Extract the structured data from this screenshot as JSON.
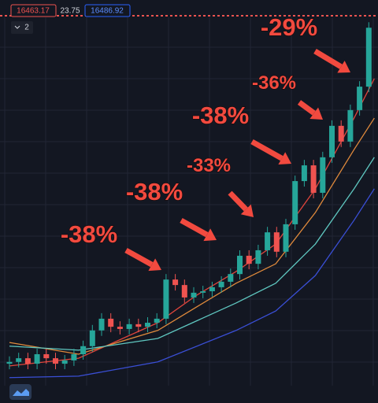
{
  "chart_data": {
    "type": "candlestick",
    "header": {
      "last_price": "16463.17",
      "spread": "23.75",
      "ask_price": "16486.92",
      "indicator_count": "2"
    },
    "annotations": [
      "-29%",
      "-36%",
      "-38%",
      "-33%",
      "-38%",
      "-38%"
    ],
    "ylim": [
      0,
      100
    ],
    "up_color": "#26a69a",
    "down_color": "#ef5350",
    "open": [
      6.0,
      6.5,
      7.5,
      6.0,
      8.6,
      7.5,
      6.0,
      6.9,
      8.6,
      10.8,
      15.1,
      18.3,
      16.1,
      15.5,
      16.8,
      16.1,
      17.2,
      18.3,
      29.0,
      27.5,
      24.1,
      25.4,
      25.8,
      26.9,
      28.4,
      30.5,
      35.5,
      33.3,
      37.0,
      41.9,
      36.6,
      44.1,
      55.9,
      60.2,
      52.7,
      62.4,
      71.0,
      66.7,
      75.3,
      81.7
    ],
    "high": [
      8.0,
      9.0,
      9.0,
      10.1,
      10.1,
      9.0,
      8.4,
      10.1,
      12.3,
      16.6,
      19.8,
      19.8,
      17.6,
      18.3,
      18.3,
      18.7,
      19.8,
      30.5,
      30.5,
      29.0,
      26.9,
      27.3,
      28.4,
      29.9,
      32.0,
      37.0,
      37.0,
      38.5,
      43.4,
      43.4,
      45.6,
      57.4,
      61.7,
      61.7,
      63.9,
      72.5,
      72.5,
      76.8,
      83.2,
      99.3
    ],
    "low": [
      4.5,
      5.0,
      4.5,
      4.5,
      6.0,
      4.5,
      4.5,
      5.4,
      7.1,
      9.3,
      13.6,
      14.6,
      14.0,
      14.0,
      14.6,
      14.6,
      15.7,
      16.8,
      26.0,
      22.6,
      22.6,
      23.9,
      24.3,
      25.4,
      26.9,
      29.0,
      31.8,
      31.8,
      35.5,
      35.1,
      35.1,
      42.6,
      54.4,
      51.2,
      51.2,
      60.9,
      65.2,
      65.2,
      73.8,
      80.2
    ],
    "close": [
      6.5,
      7.5,
      6.0,
      8.6,
      7.5,
      6.0,
      6.9,
      8.6,
      10.8,
      15.1,
      18.3,
      16.1,
      15.5,
      16.8,
      16.1,
      17.2,
      18.3,
      29.0,
      27.5,
      24.1,
      25.4,
      25.8,
      26.9,
      28.4,
      30.5,
      35.5,
      33.3,
      37.0,
      41.9,
      36.6,
      44.1,
      55.9,
      60.2,
      52.7,
      62.4,
      71.0,
      66.7,
      75.3,
      81.7,
      97.8
    ],
    "moving_averages": [
      {
        "color": "#e0453c",
        "x": [
          0,
          7.5,
          16.1,
          20.3,
          24.6,
          28.9,
          33.2,
          37.4,
          39.6
        ],
        "values": [
          5.4,
          7.5,
          17.2,
          24.7,
          31.2,
          38.7,
          53.8,
          73.1,
          83.9
        ]
      },
      {
        "color": "#e08a3c",
        "x": [
          0,
          7.5,
          16.1,
          20.3,
          24.6,
          28.9,
          33.2,
          37.4,
          39.6
        ],
        "values": [
          11.8,
          8.6,
          15.1,
          21.5,
          28.0,
          33.3,
          47.3,
          64.5,
          73.1
        ]
      },
      {
        "color": "#5fc7c0",
        "x": [
          0,
          7.5,
          16.1,
          24.6,
          28.9,
          33.2,
          37.4,
          39.6
        ],
        "values": [
          10.8,
          9.7,
          12.9,
          22.6,
          28.0,
          38.7,
          53.8,
          62.4
        ]
      },
      {
        "color": "#3a4fd6",
        "x": [
          0,
          7.5,
          16.1,
          24.6,
          28.9,
          33.2,
          37.4,
          39.6
        ],
        "values": [
          2.2,
          2.6,
          6.5,
          15.1,
          20.4,
          30.1,
          45.2,
          53.8
        ]
      }
    ]
  }
}
